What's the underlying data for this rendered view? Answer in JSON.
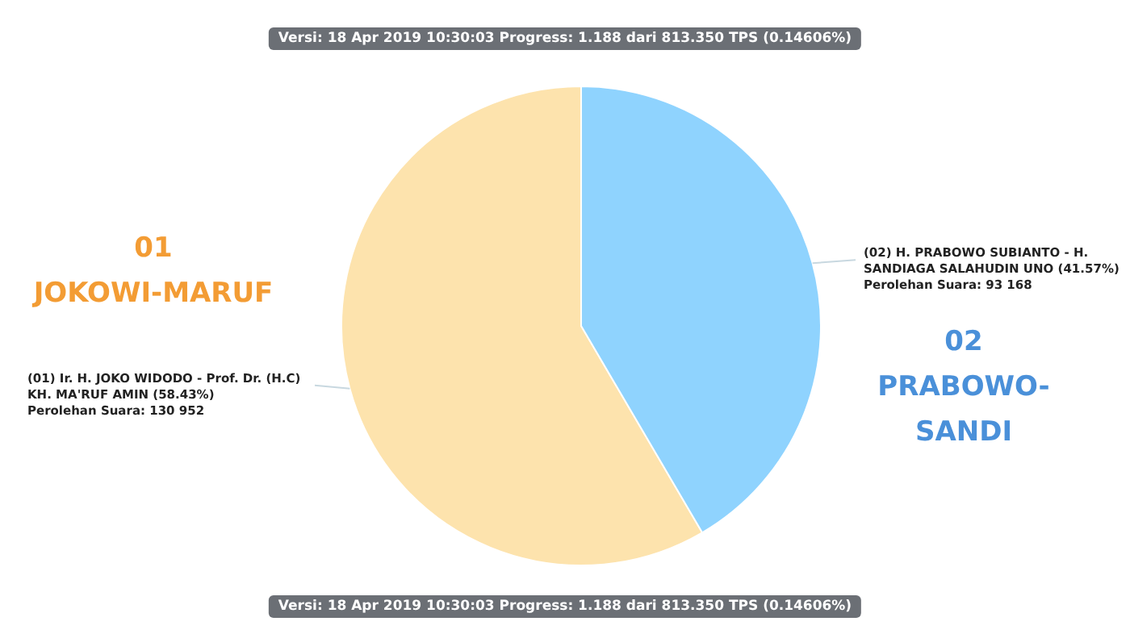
{
  "chart_data": {
    "type": "pie",
    "title": "Versi: 18 Apr 2019 10:30:03 Progress: 1.188 dari 813.350 TPS (0.14606%)",
    "categories": [
      "(01) Ir. H. JOKO WIDODO - Prof. Dr. (H.C) KH. MA'RUF AMIN (58.43%)",
      "(02) H. PRABOWO SUBIANTO - H. SANDIAGA SALAHUDIN UNO (41.57%)"
    ],
    "values": [
      130952,
      93168
    ],
    "colors": [
      "#fde3ad",
      "#8fd3fe"
    ],
    "value_labels": [
      "Perolehan Suara: 130 952",
      "Perolehan Suara: 93 168"
    ],
    "annotations": [
      "01\nJOKOWI-MARUF",
      "02\nPRABOWO-SANDI",
      "Versi: 18 Apr 2019 10:30:03 Progress: 1.188 dari 813.350 TPS (0.14606%)"
    ],
    "legend": false
  }
}
